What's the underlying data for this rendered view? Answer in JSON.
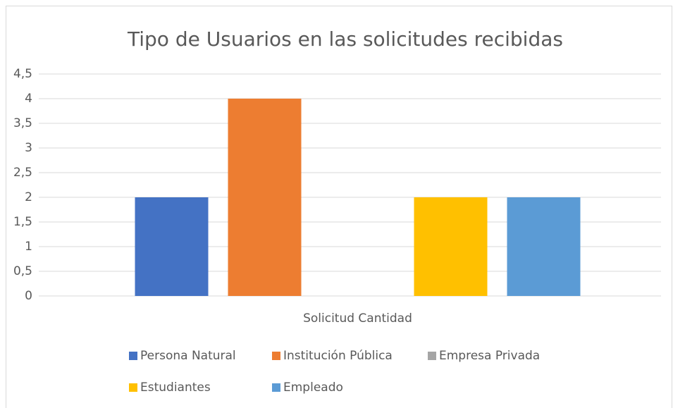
{
  "chart_data": {
    "type": "bar",
    "title": "Tipo de Usuarios en las solicitudes recibidas",
    "categories": [
      "Solicitud Cantidad"
    ],
    "series": [
      {
        "name": "Persona Natural",
        "color": "#4472c4",
        "values": [
          2
        ]
      },
      {
        "name": "Institución Pública",
        "color": "#ed7d31",
        "values": [
          4
        ]
      },
      {
        "name": "Empresa Privada",
        "color": "#a5a5a5",
        "values": [
          0
        ]
      },
      {
        "name": "Estudiantes",
        "color": "#ffc000",
        "values": [
          2
        ]
      },
      {
        "name": "Empleado",
        "color": "#5b9bd5",
        "values": [
          2
        ]
      }
    ],
    "ylim": [
      0,
      4.5
    ],
    "yticks": [
      0,
      {
        "value": 0.5,
        "label": "0,5"
      },
      1,
      {
        "value": 1.5,
        "label": "1,5"
      },
      2,
      {
        "value": 2.5,
        "label": "2,5"
      },
      3,
      {
        "value": 3.5,
        "label": "3,5"
      },
      4,
      {
        "value": 4.5,
        "label": "4,5"
      }
    ],
    "grid": true,
    "legend": "bottom"
  }
}
